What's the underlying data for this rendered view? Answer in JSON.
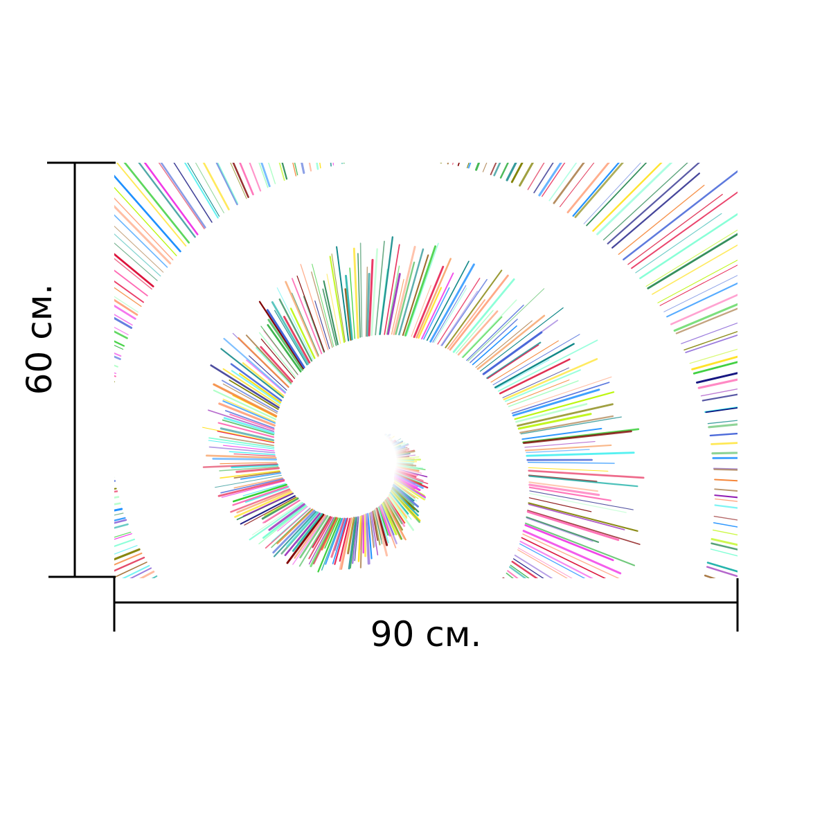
{
  "product": {
    "width_label": "90 см.",
    "height_label": "60 см."
  },
  "artwork": {
    "description_icon": "rainbow-line-spiral-icon",
    "background_color": "#ffffff",
    "palette": [
      "#e6194b",
      "#3cb44b",
      "#ffe119",
      "#4363d8",
      "#f58231",
      "#911eb4",
      "#46f0f0",
      "#f032e6",
      "#bcf60c",
      "#008080",
      "#9a6324",
      "#800000",
      "#aaffc3",
      "#808000",
      "#000075",
      "#ff69b4",
      "#7fffd4",
      "#9370db",
      "#2e8b57",
      "#ffa07a",
      "#20b2aa",
      "#dc143c",
      "#32cd32",
      "#1e90ff"
    ]
  },
  "dimension_line_color": "#000000"
}
